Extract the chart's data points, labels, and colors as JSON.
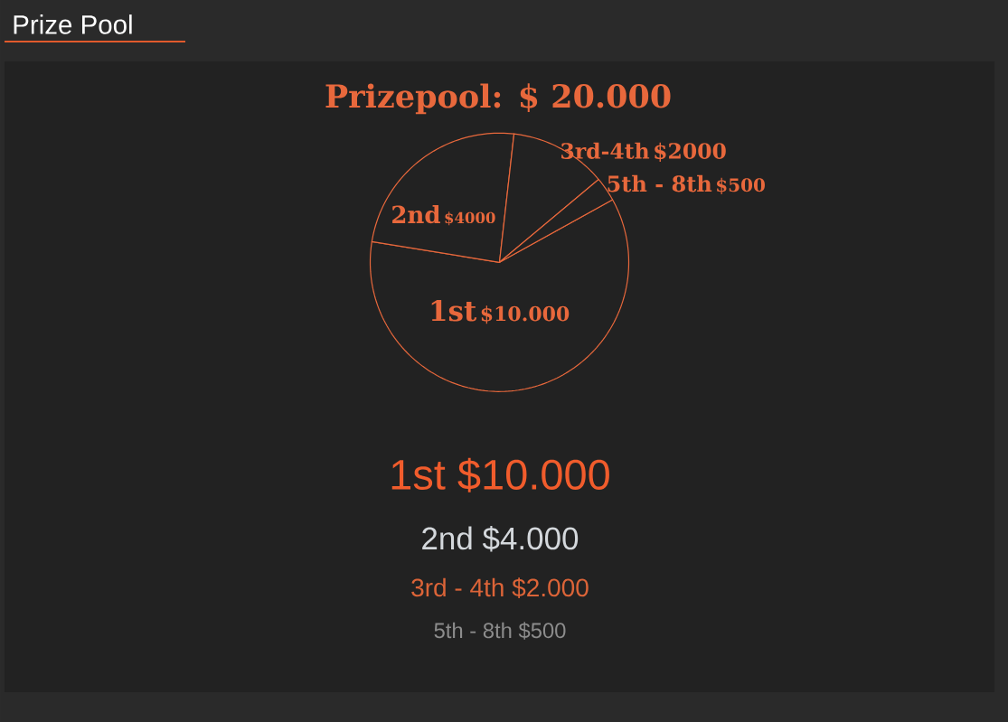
{
  "chart_data": {
    "type": "pie",
    "title": "Prize Pool",
    "subtitle": "Prizepool: $ 20.000",
    "categories": [
      "1st",
      "2nd",
      "3rd-4th",
      "5th - 8th"
    ],
    "values": [
      10000,
      4000,
      2000,
      500
    ],
    "value_labels": [
      "$10.000",
      "$4000",
      "$2000",
      "$500"
    ],
    "colors": [
      "#222222",
      "#222222",
      "#222222",
      "#222222"
    ],
    "annotations": [
      "1st $10.000",
      "2nd $4.000",
      "3rd - 4th $2.000",
      "5th - 8th $500"
    ]
  }
}
